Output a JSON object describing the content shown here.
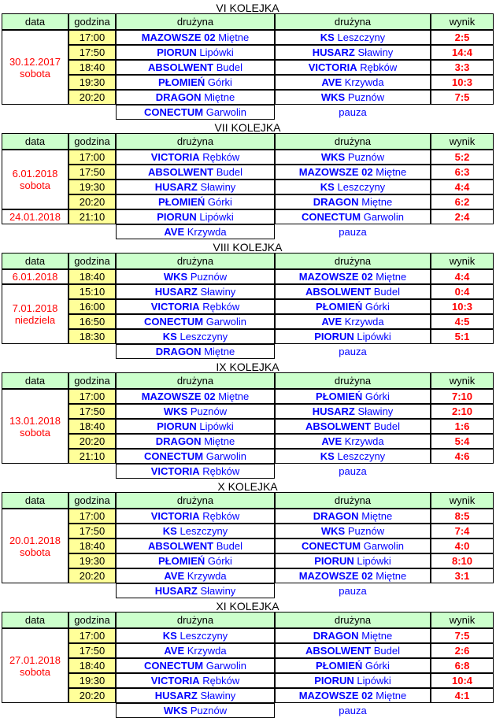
{
  "columns": [
    "data",
    "godzina",
    "drużyna",
    "drużyna",
    "wynik"
  ],
  "colors": {
    "header_bg": "#ccffcc",
    "time_bg": "#ffff99",
    "team_text": "#0000ff",
    "score_text": "#ff0000",
    "date_text": "#ff0000",
    "pause_text": "#0000ff",
    "border": "#000000",
    "title_text": "#000000"
  },
  "rounds": [
    {
      "title": "VI KOLEJKA",
      "dates": [
        {
          "date": "30.12.2017",
          "day": "sobota",
          "rows": 5
        }
      ],
      "matches": [
        {
          "time": "17:00",
          "home": {
            "name": "MAZOWSZE 02",
            "place": "Miętne"
          },
          "away": {
            "name": "KS",
            "place": "Leszczyny"
          },
          "score": "2:5"
        },
        {
          "time": "17:50",
          "home": {
            "name": "PIORUN",
            "place": "Lipówki"
          },
          "away": {
            "name": "HUSARZ",
            "place": "Sławiny"
          },
          "score": "14:4"
        },
        {
          "time": "18:40",
          "home": {
            "name": "ABSOLWENT",
            "place": "Budel"
          },
          "away": {
            "name": "VICTORIA",
            "place": "Rębków"
          },
          "score": "3:3"
        },
        {
          "time": "19:30",
          "home": {
            "name": "PŁOMIEŃ",
            "place": "Górki"
          },
          "away": {
            "name": "AVE",
            "place": "Krzywda"
          },
          "score": "10:3"
        },
        {
          "time": "20:20",
          "home": {
            "name": "DRAGON",
            "place": "Miętne"
          },
          "away": {
            "name": "WKS",
            "place": "Puznów"
          },
          "score": "7:5"
        }
      ],
      "pause": {
        "team": {
          "name": "CONECTUM",
          "place": "Garwolin"
        },
        "label": "pauza"
      }
    },
    {
      "title": "VII KOLEJKA",
      "dates": [
        {
          "date": "6.01.2018",
          "day": "sobota",
          "rows": 4
        },
        {
          "date": "24.01.2018",
          "day": "",
          "rows": 1
        }
      ],
      "matches": [
        {
          "time": "17:00",
          "home": {
            "name": "VICTORIA",
            "place": "Rębków"
          },
          "away": {
            "name": "WKS",
            "place": "Puznów"
          },
          "score": "5:2"
        },
        {
          "time": "17:50",
          "home": {
            "name": "ABSOLWENT",
            "place": "Budel"
          },
          "away": {
            "name": "MAZOWSZE 02",
            "place": "Miętne"
          },
          "score": "6:3"
        },
        {
          "time": "19:30",
          "home": {
            "name": "HUSARZ",
            "place": "Sławiny"
          },
          "away": {
            "name": "KS",
            "place": "Leszczyny"
          },
          "score": "4:4"
        },
        {
          "time": "20:20",
          "home": {
            "name": "PŁOMIEŃ",
            "place": "Górki"
          },
          "away": {
            "name": "DRAGON",
            "place": "Miętne"
          },
          "score": "6:2"
        },
        {
          "time": "21:10",
          "home": {
            "name": "PIORUN",
            "place": "Lipówki"
          },
          "away": {
            "name": "CONECTUM",
            "place": "Garwolin"
          },
          "score": "2:4"
        }
      ],
      "pause": {
        "team": {
          "name": "AVE",
          "place": "Krzywda"
        },
        "label": "pauza"
      }
    },
    {
      "title": "VIII KOLEJKA",
      "dates": [
        {
          "date": "6.01.2018",
          "day": "",
          "rows": 1
        },
        {
          "date": "7.01.2018",
          "day": "niedziela",
          "rows": 4
        }
      ],
      "matches": [
        {
          "time": "18:40",
          "home": {
            "name": "WKS",
            "place": "Puznów"
          },
          "away": {
            "name": "MAZOWSZE 02",
            "place": "Miętne"
          },
          "score": "4:4"
        },
        {
          "time": "15:10",
          "home": {
            "name": "HUSARZ",
            "place": "Sławiny"
          },
          "away": {
            "name": "ABSOLWENT",
            "place": "Budel"
          },
          "score": "0:4"
        },
        {
          "time": "16:00",
          "home": {
            "name": "VICTORIA",
            "place": "Rębków"
          },
          "away": {
            "name": "PŁOMIEŃ",
            "place": "Górki"
          },
          "score": "10:3"
        },
        {
          "time": "16:50",
          "home": {
            "name": "CONECTUM",
            "place": "Garwolin"
          },
          "away": {
            "name": "AVE",
            "place": "Krzywda"
          },
          "score": "4:5"
        },
        {
          "time": "18:30",
          "home": {
            "name": "KS",
            "place": "Leszczyny"
          },
          "away": {
            "name": "PIORUN",
            "place": "Lipówki"
          },
          "score": "5:1"
        }
      ],
      "pause": {
        "team": {
          "name": "DRAGON",
          "place": "Miętne"
        },
        "label": "pauza"
      }
    },
    {
      "title": "IX KOLEJKA",
      "dates": [
        {
          "date": "13.01.2018",
          "day": "sobota",
          "rows": 5
        }
      ],
      "matches": [
        {
          "time": "17:00",
          "home": {
            "name": "MAZOWSZE 02",
            "place": "Miętne"
          },
          "away": {
            "name": "PŁOMIEŃ",
            "place": "Górki"
          },
          "score": "7:10"
        },
        {
          "time": "17:50",
          "home": {
            "name": "WKS",
            "place": "Puznów"
          },
          "away": {
            "name": "HUSARZ",
            "place": "Sławiny"
          },
          "score": "2:10"
        },
        {
          "time": "18:40",
          "home": {
            "name": "PIORUN",
            "place": "Lipówki"
          },
          "away": {
            "name": "ABSOLWENT",
            "place": "Budel"
          },
          "score": "1:6"
        },
        {
          "time": "20:20",
          "home": {
            "name": "DRAGON",
            "place": "Miętne"
          },
          "away": {
            "name": "AVE",
            "place": "Krzywda"
          },
          "score": "5:4"
        },
        {
          "time": "21:10",
          "home": {
            "name": "CONECTUM",
            "place": "Garwolin"
          },
          "away": {
            "name": "KS",
            "place": "Leszczyny"
          },
          "score": "4:6"
        }
      ],
      "pause": {
        "team": {
          "name": "VICTORIA",
          "place": "Rębków"
        },
        "label": "pauza"
      }
    },
    {
      "title": "X KOLEJKA",
      "dates": [
        {
          "date": "20.01.2018",
          "day": "sobota",
          "rows": 5
        }
      ],
      "matches": [
        {
          "time": "17:00",
          "home": {
            "name": "VICTORIA",
            "place": "Rębków"
          },
          "away": {
            "name": "DRAGON",
            "place": "Miętne"
          },
          "score": "8:5"
        },
        {
          "time": "17:50",
          "home": {
            "name": "KS",
            "place": "Leszczyny"
          },
          "away": {
            "name": "WKS",
            "place": "Puznów"
          },
          "score": "7:4"
        },
        {
          "time": "18:40",
          "home": {
            "name": "ABSOLWENT",
            "place": "Budel"
          },
          "away": {
            "name": "CONECTUM",
            "place": "Garwolin"
          },
          "score": "4:0"
        },
        {
          "time": "19:30",
          "home": {
            "name": "PŁOMIEŃ",
            "place": "Górki"
          },
          "away": {
            "name": "PIORUN",
            "place": "Lipówki"
          },
          "score": "8:10"
        },
        {
          "time": "20:20",
          "home": {
            "name": "AVE",
            "place": "Krzywda"
          },
          "away": {
            "name": "MAZOWSZE 02",
            "place": "Miętne"
          },
          "score": "3:1"
        }
      ],
      "pause": {
        "team": {
          "name": "HUSARZ",
          "place": "Sławiny"
        },
        "label": "pauza"
      }
    },
    {
      "title": "XI KOLEJKA",
      "dates": [
        {
          "date": "27.01.2018",
          "day": "sobota",
          "rows": 5
        }
      ],
      "matches": [
        {
          "time": "17:00",
          "home": {
            "name": "KS",
            "place": "Leszczyny"
          },
          "away": {
            "name": "DRAGON",
            "place": "Miętne"
          },
          "score": "7:5"
        },
        {
          "time": "17:50",
          "home": {
            "name": "AVE",
            "place": "Krzywda"
          },
          "away": {
            "name": "ABSOLWENT",
            "place": "Budel"
          },
          "score": "2:6"
        },
        {
          "time": "18:40",
          "home": {
            "name": "CONECTUM",
            "place": "Garwolin"
          },
          "away": {
            "name": "PŁOMIEŃ",
            "place": "Górki"
          },
          "score": "6:8"
        },
        {
          "time": "19:30",
          "home": {
            "name": "VICTORIA",
            "place": "Rębków"
          },
          "away": {
            "name": "PIORUN",
            "place": "Lipówki"
          },
          "score": "10:4"
        },
        {
          "time": "20:20",
          "home": {
            "name": "HUSARZ",
            "place": "Sławiny"
          },
          "away": {
            "name": "MAZOWSZE 02",
            "place": "Miętne"
          },
          "score": "4:1"
        }
      ],
      "pause": {
        "team": {
          "name": "WKS",
          "place": "Puznów"
        },
        "label": "pauza"
      }
    }
  ]
}
